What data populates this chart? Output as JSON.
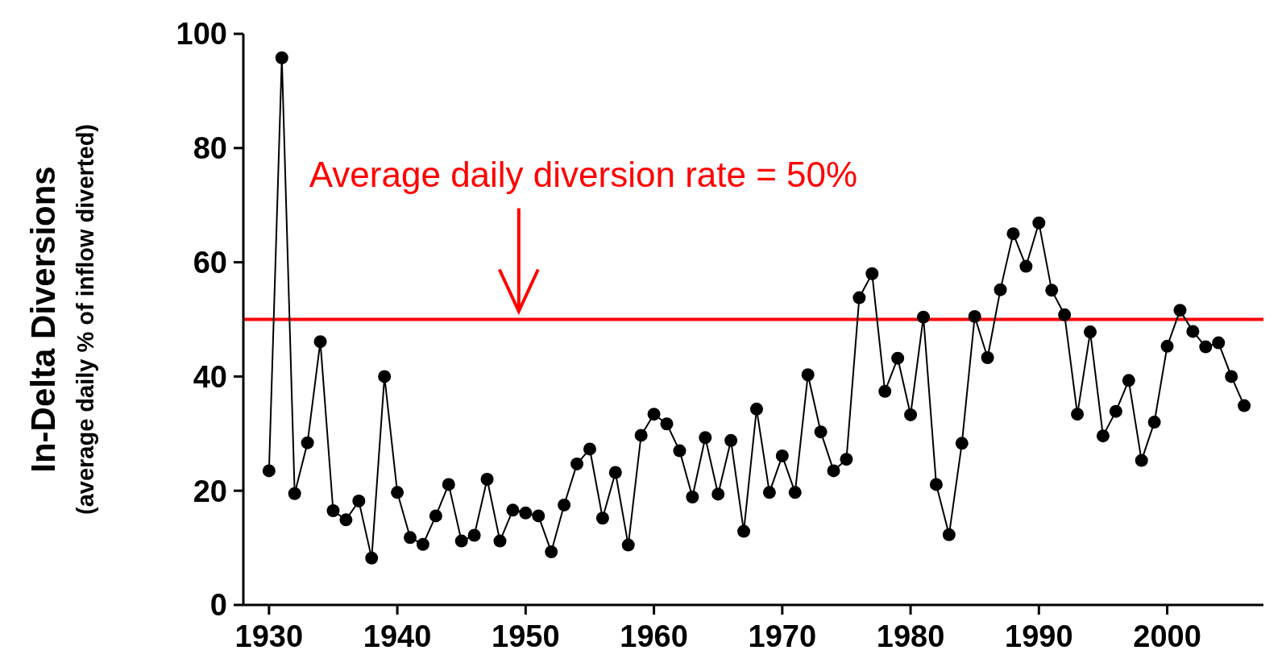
{
  "chart_data": {
    "type": "line",
    "ylabel": "In-Delta Diversions\n(average daily % of inflow diverted)",
    "x": [
      1930,
      1931,
      1932,
      1933,
      1934,
      1935,
      1936,
      1937,
      1938,
      1939,
      1940,
      1941,
      1942,
      1943,
      1944,
      1945,
      1946,
      1947,
      1948,
      1949,
      1950,
      1951,
      1952,
      1953,
      1954,
      1955,
      1956,
      1957,
      1958,
      1959,
      1960,
      1961,
      1962,
      1963,
      1964,
      1965,
      1966,
      1967,
      1968,
      1969,
      1970,
      1971,
      1972,
      1973,
      1974,
      1975,
      1976,
      1977,
      1978,
      1979,
      1980,
      1981,
      1982,
      1983,
      1984,
      1985,
      1986,
      1987,
      1988,
      1989,
      1990,
      1991,
      1992,
      1993,
      1994,
      1995,
      1996,
      1997,
      1998,
      1999,
      2000,
      2001,
      2002,
      2003,
      2004,
      2005,
      2006
    ],
    "series": [
      {
        "color": "#000000",
        "values": [
          23.5,
          95.8,
          19.5,
          28.4,
          46.1,
          16.5,
          14.9,
          18.2,
          8.2,
          40.0,
          19.7,
          11.8,
          10.6,
          15.6,
          21.1,
          11.2,
          12.2,
          22.0,
          11.2,
          16.6,
          16.1,
          15.6,
          9.3,
          17.5,
          24.7,
          27.3,
          15.2,
          23.2,
          10.5,
          29.7,
          33.4,
          31.7,
          27.0,
          18.9,
          29.3,
          19.4,
          28.8,
          12.9,
          34.3,
          19.7,
          26.1,
          19.7,
          40.3,
          30.3,
          23.5,
          25.5,
          53.8,
          58.0,
          37.4,
          43.2,
          33.3,
          50.4,
          21.1,
          12.3,
          28.3,
          50.5,
          43.3,
          55.2,
          65.0,
          59.3,
          66.9,
          55.1,
          50.8,
          33.4,
          47.8,
          29.6,
          33.9,
          39.3,
          25.3,
          32.0,
          45.3,
          51.6,
          47.9,
          45.2,
          45.9,
          40.0,
          34.9
        ]
      }
    ],
    "xlim": [
      1928,
      2007.5
    ],
    "xticks": [
      1930,
      1940,
      1950,
      1960,
      1970,
      1980,
      1990,
      2000
    ],
    "ylim": [
      0,
      100
    ],
    "yticks": [
      0,
      20,
      40,
      60,
      80,
      100
    ],
    "ref_lines": [
      {
        "axis": "y",
        "value": 50,
        "color": "#ff0000",
        "label": "Average daily diversion rate = 50%"
      }
    ],
    "marker": "circle",
    "line_style": "solid",
    "grid": false
  }
}
